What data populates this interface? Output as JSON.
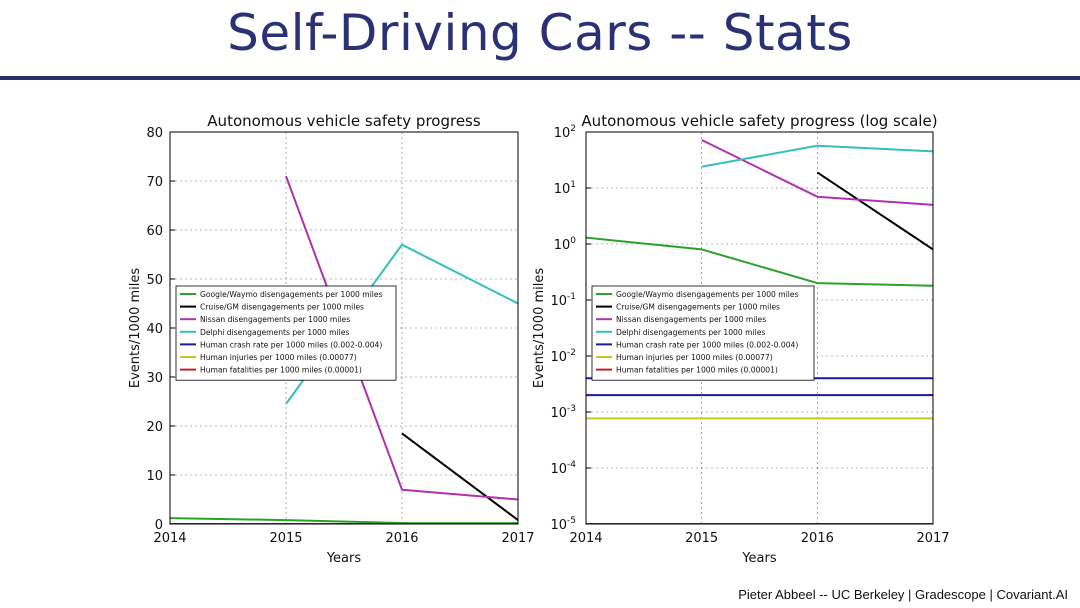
{
  "slide": {
    "title": "Self-Driving Cars -- Stats",
    "footer": "Pieter Abbeel -- UC Berkeley | Gradescope | Covariant.AI"
  },
  "chart_data": [
    {
      "type": "line",
      "title": "Autonomous vehicle safety progress",
      "xlabel": "Years",
      "ylabel": "Events/1000 miles",
      "xlim": [
        2014,
        2017
      ],
      "ylim": [
        0,
        80
      ],
      "yscale": "linear",
      "xticks": [
        "2014",
        "2015",
        "2016",
        "2017"
      ],
      "yticks": [
        "0",
        "10",
        "20",
        "30",
        "40",
        "50",
        "60",
        "70",
        "80"
      ],
      "grid": true,
      "legend": "center-left",
      "series": [
        {
          "name": "Google/Waymo disengagements per 1000 miles",
          "color": "#2ca02c",
          "points": [
            [
              2014,
              1.2
            ],
            [
              2015,
              0.8
            ],
            [
              2016,
              0.2
            ],
            [
              2017,
              0.18
            ]
          ]
        },
        {
          "name": "Cruise/GM disengagements per 1000 miles",
          "color": "#000000",
          "points": [
            [
              2016,
              18.5
            ],
            [
              2017,
              0.8
            ]
          ]
        },
        {
          "name": "Nissan disengagements per 1000 miles",
          "color": "#b030b0",
          "points": [
            [
              2015,
              71
            ],
            [
              2016,
              7
            ],
            [
              2017,
              5
            ]
          ]
        },
        {
          "name": "Delphi disengagements per 1000 miles",
          "color": "#30c0b8",
          "points": [
            [
              2015,
              24.5
            ],
            [
              2016,
              57
            ],
            [
              2017,
              45
            ]
          ]
        },
        {
          "name": "Human crash rate per 1000 miles (0.002-0.004)",
          "color": "#1a1a9c",
          "points": [
            [
              2014,
              0.004
            ],
            [
              2017,
              0.004
            ]
          ]
        },
        {
          "name": "Human injuries per 1000 miles (0.00077)",
          "color": "#c8c820",
          "points": [
            [
              2014,
              0.00077
            ],
            [
              2017,
              0.00077
            ]
          ]
        },
        {
          "name": "Human fatalities per 1000 miles (0.00001)",
          "color": "#c0202c",
          "points": [
            [
              2014,
              1e-05
            ],
            [
              2017,
              1e-05
            ]
          ]
        }
      ]
    },
    {
      "type": "line",
      "title": "Autonomous vehicle safety progress (log scale)",
      "xlabel": "Years",
      "ylabel": "Events/1000 miles",
      "xlim": [
        2014,
        2017
      ],
      "ylim": [
        1e-05,
        100
      ],
      "yscale": "log",
      "xticks": [
        "2014",
        "2015",
        "2016",
        "2017"
      ],
      "yticks": [
        "10",
        "10",
        "10",
        "10",
        "10",
        "10",
        "10",
        "10"
      ],
      "ytick_exponents": [
        "-5",
        "-4",
        "-3",
        "-2",
        "-1",
        "0",
        "1",
        "2"
      ],
      "grid": true,
      "legend": "center-left",
      "series": [
        {
          "name": "Google/Waymo disengagements per 1000 miles",
          "color": "#2ca02c",
          "points": [
            [
              2014,
              1.3
            ],
            [
              2015,
              0.8
            ],
            [
              2016,
              0.2
            ],
            [
              2017,
              0.18
            ]
          ]
        },
        {
          "name": "Cruise/GM disengagements per 1000 miles",
          "color": "#000000",
          "points": [
            [
              2016,
              19
            ],
            [
              2017,
              0.8
            ]
          ]
        },
        {
          "name": "Nissan disengagements per 1000 miles",
          "color": "#b030b0",
          "points": [
            [
              2015,
              72
            ],
            [
              2016,
              7
            ],
            [
              2017,
              5
            ]
          ]
        },
        {
          "name": "Delphi disengagements per 1000 miles",
          "color": "#30c0b8",
          "points": [
            [
              2015,
              24
            ],
            [
              2016,
              57
            ],
            [
              2017,
              45
            ]
          ]
        },
        {
          "name": "Human crash rate per 1000 miles (0.002-0.004)",
          "color": "#1a1a9c",
          "points": [
            [
              2014,
              0.004
            ],
            [
              2017,
              0.004
            ]
          ]
        },
        {
          "name": "Human crash rate per 1000 miles (0.002-0.004)",
          "color": "#1a1a9c",
          "points": [
            [
              2014,
              0.002
            ],
            [
              2017,
              0.002
            ]
          ]
        },
        {
          "name": "Human injuries per 1000 miles (0.00077)",
          "color": "#c8c820",
          "points": [
            [
              2014,
              0.00077
            ],
            [
              2017,
              0.00077
            ]
          ]
        },
        {
          "name": "Human fatalities per 1000 miles (0.00001)",
          "color": "#c0202c",
          "points": [
            [
              2014,
              1e-05
            ],
            [
              2017,
              1e-05
            ]
          ]
        }
      ]
    }
  ]
}
